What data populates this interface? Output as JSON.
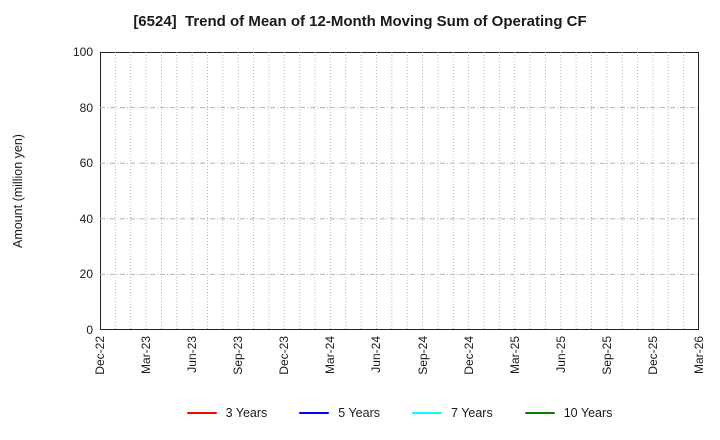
{
  "chart_data": {
    "type": "line",
    "title": "[6524]  Trend of Mean of 12-Month Moving Sum of Operating CF",
    "xlabel": "",
    "ylabel": "Amount (million yen)",
    "ylim": [
      0,
      100
    ],
    "yticks": [
      0,
      20,
      40,
      60,
      80,
      100
    ],
    "x_tick_labels": [
      "Dec-22",
      "Mar-23",
      "Jun-23",
      "Sep-23",
      "Dec-23",
      "Mar-24",
      "Jun-24",
      "Sep-24",
      "Dec-24",
      "Mar-25",
      "Jun-25",
      "Sep-25",
      "Dec-25",
      "Mar-26"
    ],
    "months_total": 39,
    "label_every_months": 3,
    "grid": true,
    "legend_position": "bottom",
    "series": [
      {
        "name": "3 Years",
        "color": "#ff0000",
        "values": []
      },
      {
        "name": "5 Years",
        "color": "#0000ff",
        "values": []
      },
      {
        "name": "7 Years",
        "color": "#00ffff",
        "values": []
      },
      {
        "name": "10 Years",
        "color": "#008000",
        "values": []
      }
    ]
  },
  "styles": {
    "grid_color": "#b5b5b5",
    "axis_color": "#222222",
    "background": "#ffffff"
  }
}
